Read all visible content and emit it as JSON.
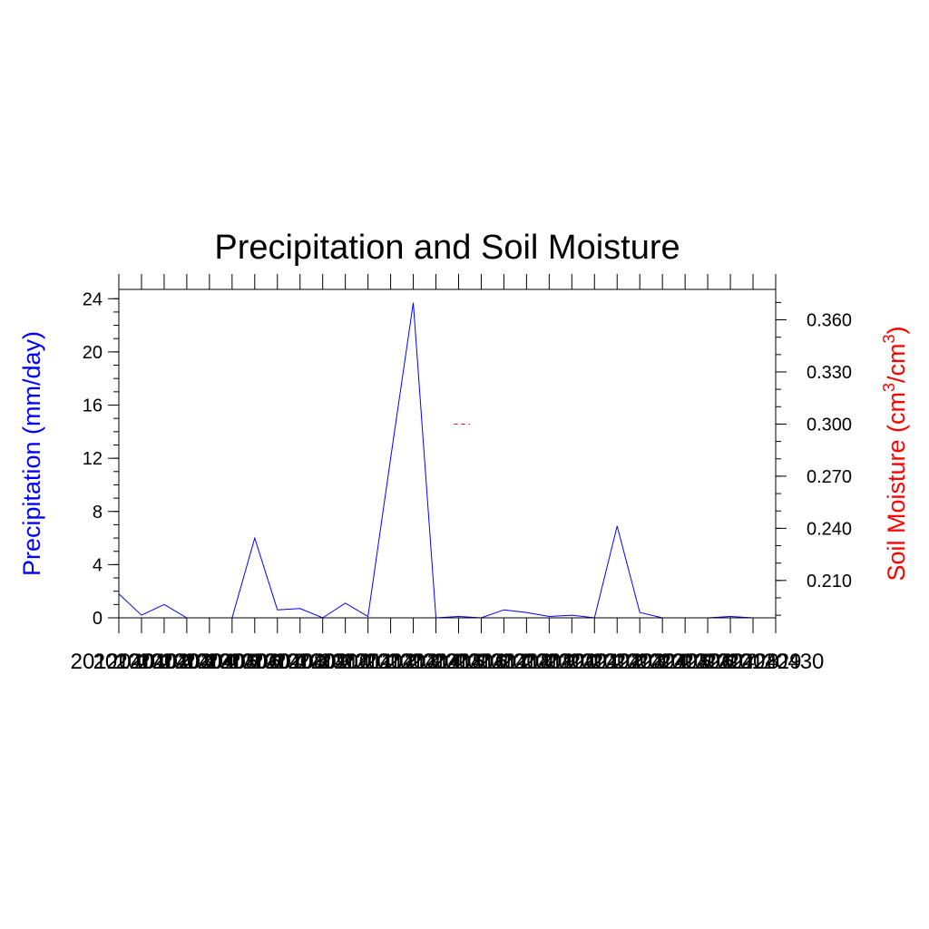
{
  "chart_data": {
    "type": "line",
    "title": "Precipitation and Soil Moisture",
    "left_axis": {
      "label": "Precipitation (mm/day)",
      "color": "#0000ff",
      "ylim": [
        0,
        24.7
      ],
      "ticks": [
        0,
        4,
        8,
        12,
        16,
        20,
        24
      ],
      "tick_labels": [
        "0",
        "4",
        "8",
        "12",
        "16",
        "20",
        "24"
      ],
      "minor_step": 1
    },
    "right_axis": {
      "label_main": "Soil Moisture (cm",
      "label_sup1": "3",
      "label_mid": "/cm",
      "label_sup2": "3",
      "label_end": ")",
      "color": "#ff0000",
      "ylim": [
        0.1885,
        0.3775
      ],
      "ticks": [
        0.21,
        0.24,
        0.27,
        0.3,
        0.33,
        0.36
      ],
      "tick_labels": [
        "0.210",
        "0.240",
        "0.270",
        "0.300",
        "0.330",
        "0.360"
      ],
      "minor_step": 0.01
    },
    "x_axis": {
      "count": 30,
      "tick_labels": [
        "20120401",
        "20120402",
        "20120403",
        "20120404",
        "20120405",
        "20120406",
        "20120407",
        "20120408",
        "20120409",
        "20120410",
        "20120411",
        "20120412",
        "20120413",
        "20120414",
        "20120415",
        "20120416",
        "20120417",
        "20120418",
        "20120419",
        "20120420",
        "20120421",
        "20120422",
        "20120423",
        "20120424",
        "20120425",
        "20120426",
        "20120427",
        "20120428",
        "20120429",
        "20120430"
      ]
    },
    "series": [
      {
        "axis": "left",
        "color": "#0000ff",
        "values": [
          1.8,
          0.2,
          1.0,
          0.0,
          0.0,
          0.0,
          6.0,
          0.6,
          0.7,
          0.0,
          1.1,
          0.1,
          12.0,
          23.7,
          0.0,
          0.1,
          0.0,
          0.6,
          0.4,
          0.1,
          0.2,
          0.0,
          6.9,
          0.4,
          0.0,
          0.0,
          0.0,
          0.1,
          0.0,
          0.0
        ]
      },
      {
        "axis": "right",
        "color": "#ff0000",
        "dashed": true,
        "x_range": [
          15.8,
          16.5
        ],
        "values_const": 0.3
      }
    ]
  }
}
